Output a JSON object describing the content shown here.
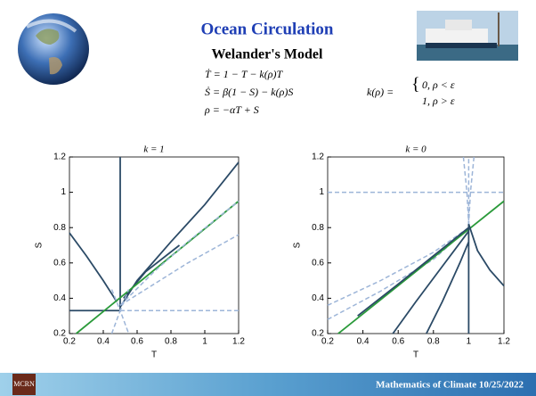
{
  "slide": {
    "title": "Ocean Circulation",
    "subtitle": "Welander's Model",
    "equations": [
      "Ṫ = 1 − T − k(ρ)T",
      "Ṡ = β(1 − S) − k(ρ)S",
      "ρ = −αT + S"
    ],
    "k_definition": {
      "lhs": "k(ρ) =",
      "cases": [
        "0,   ρ < ε",
        "1,   ρ > ε"
      ]
    },
    "footer": "Mathematics of Climate  10/25/2022",
    "logo": "MCRN"
  },
  "chart_data": [
    {
      "type": "line",
      "title": "k = 1",
      "x_label": "T",
      "y_label": "S",
      "xlim": [
        0.2,
        1.2
      ],
      "ylim": [
        0.2,
        1.2
      ],
      "xticks": [
        0.2,
        0.4,
        0.6,
        0.8,
        1,
        1.2
      ],
      "yticks": [
        0.2,
        0.4,
        0.6,
        0.8,
        1,
        1.2
      ],
      "series": [
        {
          "color": "#2b4a66",
          "dashed": false,
          "x": [
            0.5,
            0.5
          ],
          "values": [
            0.33,
            1.2
          ]
        },
        {
          "color": "#2b4a66",
          "dashed": false,
          "x": [
            0.2,
            0.5
          ],
          "values": [
            0.33,
            0.33
          ]
        },
        {
          "color": "#9db5d8",
          "dashed": true,
          "x": [
            0.5,
            1.2
          ],
          "values": [
            0.33,
            0.33
          ]
        },
        {
          "color": "#2b4a66",
          "dashed": false,
          "x": [
            0.2,
            0.3,
            0.4,
            0.48
          ],
          "values": [
            0.77,
            0.64,
            0.5,
            0.38
          ]
        },
        {
          "color": "#2b4a66",
          "dashed": false,
          "x": [
            0.5,
            0.6,
            0.8,
            1.0,
            1.2
          ],
          "values": [
            0.35,
            0.5,
            0.72,
            0.93,
            1.17
          ]
        },
        {
          "color": "#2b4a66",
          "dashed": false,
          "x": [
            0.52,
            0.65,
            0.85
          ],
          "values": [
            0.4,
            0.55,
            0.7
          ]
        },
        {
          "color": "#2a9a3a",
          "dashed": false,
          "x": [
            0.24,
            1.2
          ],
          "values": [
            0.2,
            0.95
          ]
        },
        {
          "color": "#9db5d8",
          "dashed": true,
          "x": [
            0.5,
            0.7,
            0.9,
            1.2
          ],
          "values": [
            0.36,
            0.55,
            0.72,
            0.95
          ]
        },
        {
          "color": "#9db5d8",
          "dashed": true,
          "x": [
            0.5,
            0.7,
            0.9,
            1.2
          ],
          "values": [
            0.36,
            0.48,
            0.6,
            0.76
          ]
        },
        {
          "color": "#9db5d8",
          "dashed": true,
          "x": [
            0.45,
            0.5,
            0.55
          ],
          "values": [
            0.2,
            0.33,
            0.2
          ]
        },
        {
          "color": "#9db5d8",
          "dashed": true,
          "x": [
            0.45,
            0.5,
            0.55
          ],
          "values": [
            0.45,
            0.33,
            0.45
          ]
        }
      ]
    },
    {
      "type": "line",
      "title": "k = 0",
      "x_label": "T",
      "y_label": "S",
      "xlim": [
        0.2,
        1.2
      ],
      "ylim": [
        0.2,
        1.2
      ],
      "xticks": [
        0.2,
        0.4,
        0.6,
        0.8,
        1,
        1.2
      ],
      "yticks": [
        0.2,
        0.4,
        0.6,
        0.8,
        1,
        1.2
      ],
      "series": [
        {
          "color": "#9db5d8",
          "dashed": true,
          "x": [
            0.2,
            1.2
          ],
          "values": [
            1,
            1
          ]
        },
        {
          "color": "#9db5d8",
          "dashed": true,
          "x": [
            1,
            1
          ],
          "values": [
            0.8,
            1.2
          ]
        },
        {
          "color": "#9db5d8",
          "dashed": true,
          "x": [
            0.97,
            0.99,
            1
          ],
          "values": [
            1.2,
            1.0,
            0.82
          ]
        },
        {
          "color": "#9db5d8",
          "dashed": true,
          "x": [
            1.03,
            1.01,
            1
          ],
          "values": [
            1.2,
            1.0,
            0.82
          ]
        },
        {
          "color": "#9db5d8",
          "dashed": true,
          "x": [
            0.2,
            0.5,
            0.8,
            1
          ],
          "values": [
            0.36,
            0.5,
            0.66,
            0.8
          ]
        },
        {
          "color": "#9db5d8",
          "dashed": true,
          "x": [
            0.2,
            0.5,
            0.8,
            1
          ],
          "values": [
            0.28,
            0.44,
            0.62,
            0.8
          ]
        },
        {
          "color": "#2a9a3a",
          "dashed": false,
          "x": [
            0.26,
            1.2
          ],
          "values": [
            0.2,
            0.95
          ]
        },
        {
          "color": "#2b4a66",
          "dashed": false,
          "x": [
            0.37,
            0.6,
            0.8,
            1
          ],
          "values": [
            0.3,
            0.48,
            0.64,
            0.8
          ]
        },
        {
          "color": "#2b4a66",
          "dashed": false,
          "x": [
            0.57,
            0.7,
            0.85,
            1
          ],
          "values": [
            0.2,
            0.38,
            0.58,
            0.78
          ]
        },
        {
          "color": "#2b4a66",
          "dashed": false,
          "x": [
            0.76,
            0.85,
            0.95,
            1
          ],
          "values": [
            0.2,
            0.38,
            0.6,
            0.72
          ]
        },
        {
          "color": "#2b4a66",
          "dashed": false,
          "x": [
            1,
            1
          ],
          "values": [
            0.2,
            0.82
          ]
        },
        {
          "color": "#2b4a66",
          "dashed": false,
          "x": [
            1,
            1.05,
            1.12,
            1.2
          ],
          "values": [
            0.82,
            0.67,
            0.56,
            0.47
          ]
        }
      ]
    }
  ]
}
